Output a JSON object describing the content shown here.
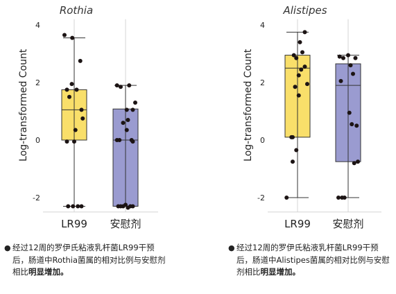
{
  "chart_data": [
    {
      "type": "box",
      "title": "Rothia",
      "ylabel": "Log-transformed Count",
      "ylim": [
        -2.5,
        4.2
      ],
      "yticks": [
        -2,
        0,
        2,
        4
      ],
      "categories": [
        "LR99",
        "安慰剂"
      ],
      "colors": [
        "#f9df6a",
        "#9a9bd0"
      ],
      "boxes": [
        {
          "category": "LR99",
          "whisker_low": -2.3,
          "q1": 0.0,
          "median": 1.05,
          "q3": 1.75,
          "whisker_high": 3.55
        },
        {
          "category": "安慰剂",
          "whisker_low": -2.3,
          "q1": -2.3,
          "median": 0.0,
          "q3": 1.08,
          "whisker_high": 1.9
        }
      ],
      "points": [
        [
          [
            -0.4,
            3.65
          ],
          [
            -0.08,
            3.55
          ],
          [
            0.25,
            2.75
          ],
          [
            -0.1,
            1.95
          ],
          [
            -0.3,
            1.75
          ],
          [
            0.1,
            1.75
          ],
          [
            -0.2,
            1.5
          ],
          [
            0.3,
            1.05
          ],
          [
            0.35,
            0.75
          ],
          [
            0.05,
            0.35
          ],
          [
            -0.3,
            -0.05
          ],
          [
            0.0,
            -0.05
          ],
          [
            -0.25,
            -2.3
          ],
          [
            -0.05,
            -2.3
          ],
          [
            0.15,
            -2.3
          ],
          [
            0.3,
            -2.3
          ]
        ],
        [
          [
            -0.35,
            1.9
          ],
          [
            -0.2,
            1.85
          ],
          [
            0.15,
            1.9
          ],
          [
            0.05,
            1.05
          ],
          [
            0.3,
            1.05
          ],
          [
            0.4,
            1.3
          ],
          [
            0.1,
            0.7
          ],
          [
            -0.1,
            0.6
          ],
          [
            0.05,
            0.35
          ],
          [
            -0.35,
            0.0
          ],
          [
            -0.25,
            0.0
          ],
          [
            0.25,
            0.0
          ],
          [
            0.3,
            -0.05
          ],
          [
            -0.3,
            -2.3
          ],
          [
            -0.2,
            -2.3
          ],
          [
            -0.1,
            -2.3
          ],
          [
            0.0,
            -2.25
          ],
          [
            0.1,
            -2.35
          ],
          [
            0.2,
            -2.3
          ],
          [
            0.3,
            -2.3
          ]
        ]
      ]
    },
    {
      "type": "box",
      "title": "Alistipes",
      "ylabel": "Log-transformed Count",
      "ylim": [
        -2.5,
        4.2
      ],
      "yticks": [
        -2,
        0,
        2,
        4
      ],
      "categories": [
        "LR99",
        "安慰剂"
      ],
      "colors": [
        "#f9df6a",
        "#9a9bd0"
      ],
      "boxes": [
        {
          "category": "LR99",
          "whisker_low": -2.0,
          "q1": 0.1,
          "median": 2.5,
          "q3": 2.95,
          "whisker_high": 3.75
        },
        {
          "category": "安慰剂",
          "whisker_low": -2.0,
          "q1": -0.75,
          "median": 1.9,
          "q3": 2.65,
          "whisker_high": 2.95
        }
      ],
      "points": [
        [
          [
            -0.45,
            -2.0
          ],
          [
            0.3,
            3.75
          ],
          [
            0.1,
            3.4
          ],
          [
            0.2,
            3.05
          ],
          [
            -0.15,
            2.95
          ],
          [
            -0.05,
            2.85
          ],
          [
            0.3,
            2.55
          ],
          [
            0.15,
            2.45
          ],
          [
            0.05,
            2.25
          ],
          [
            0.4,
            1.95
          ],
          [
            -0.1,
            1.85
          ],
          [
            0.05,
            1.55
          ],
          [
            -0.2,
            0.1
          ],
          [
            -0.25,
            0.1
          ],
          [
            -0.05,
            -0.35
          ],
          [
            -0.2,
            -0.75
          ]
        ],
        [
          [
            -0.35,
            2.9
          ],
          [
            -0.2,
            2.85
          ],
          [
            0.0,
            2.95
          ],
          [
            0.3,
            2.85
          ],
          [
            0.1,
            2.6
          ],
          [
            0.2,
            2.3
          ],
          [
            -0.3,
            2.05
          ],
          [
            0.05,
            0.95
          ],
          [
            0.15,
            0.55
          ],
          [
            0.35,
            0.5
          ],
          [
            0.4,
            -0.75
          ],
          [
            0.25,
            -0.8
          ],
          [
            -0.4,
            -2.0
          ],
          [
            -0.25,
            -2.0
          ],
          [
            -0.15,
            -2.0
          ]
        ]
      ]
    }
  ],
  "captions": [
    {
      "text": "经过12周的罗伊氏粘液乳杆菌LR99干预后，肠道中Rothia菌属的相对比例与安慰剂相比",
      "bold": "明显增加。"
    },
    {
      "text": "经过12周的罗伊氏粘液乳杆菌LR99干预后，肠道中Alistipes菌属的相对比例与安慰剂相比",
      "bold": "明显增加。"
    }
  ],
  "bullet": "●"
}
